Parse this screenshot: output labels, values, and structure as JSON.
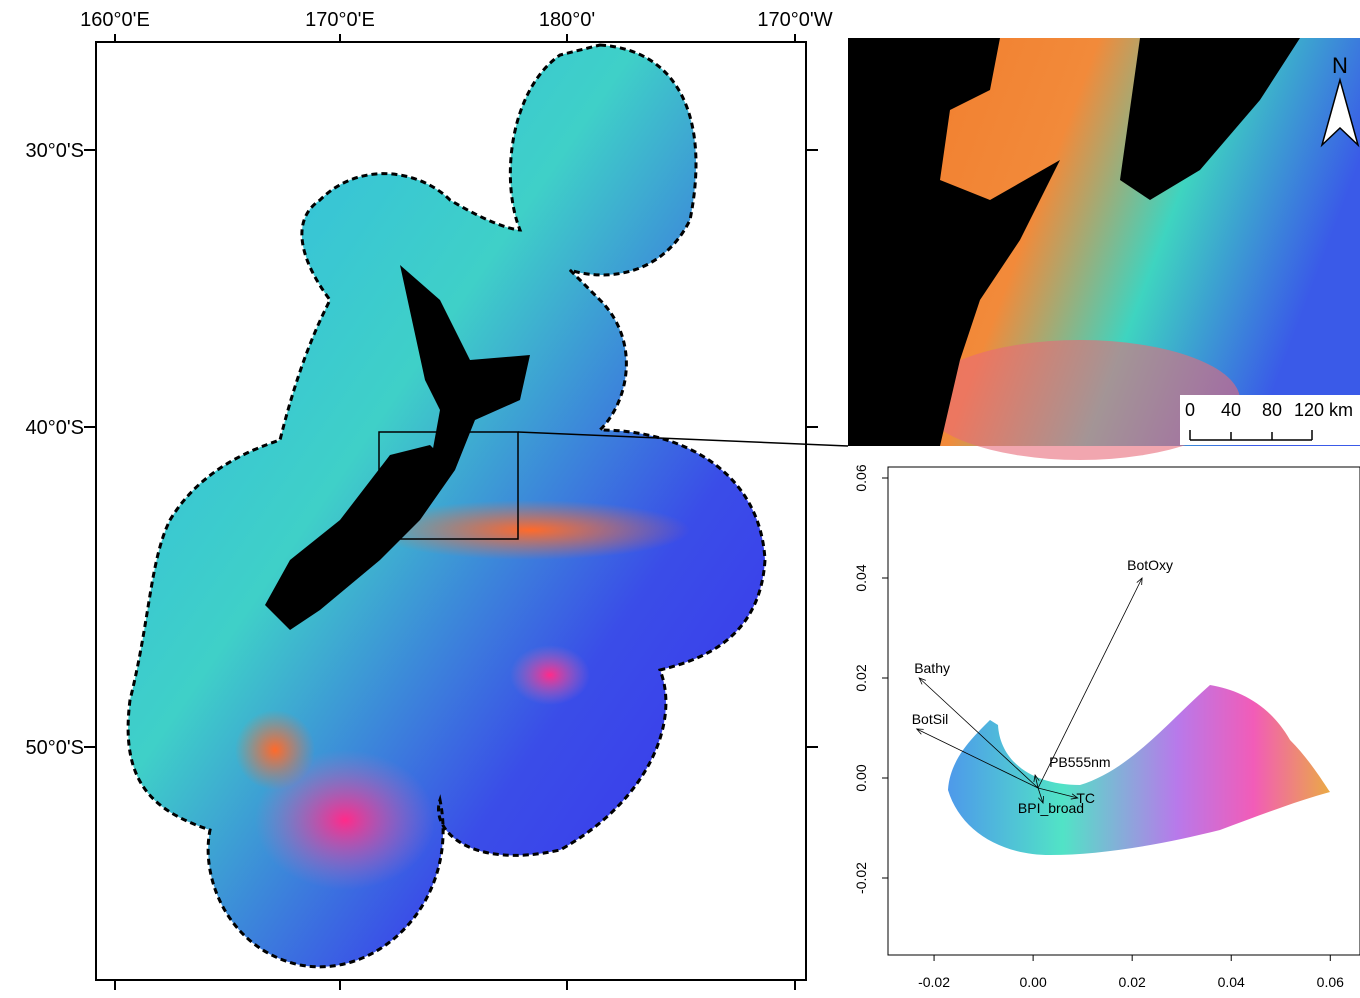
{
  "map": {
    "lon_labels": [
      "160°0'E",
      "170°0'E",
      "180°0'",
      "170°0'W"
    ],
    "lat_labels": [
      "30°0'S",
      "40°0'S",
      "50°0'S"
    ]
  },
  "inset": {
    "north_label": "N",
    "scale_labels": [
      "0",
      "40",
      "80",
      "120 km"
    ]
  },
  "biplot": {
    "xlim": [
      -0.0293,
      0.066
    ],
    "ylim": [
      -0.0354,
      0.0622
    ],
    "xticks": [
      {
        "value": -0.02,
        "label": "-0.02"
      },
      {
        "value": 0,
        "label": "0.00"
      },
      {
        "value": 0.02,
        "label": "0.02"
      },
      {
        "value": 0.04,
        "label": "0.04"
      },
      {
        "value": 0.06,
        "label": "0.06"
      }
    ],
    "yticks": [
      {
        "value": -0.02,
        "label": "-0.02"
      },
      {
        "value": 0,
        "label": "0.00"
      },
      {
        "value": 0.02,
        "label": "0.02"
      },
      {
        "value": 0.04,
        "label": "0.04"
      },
      {
        "value": 0.06,
        "label": "0.06"
      }
    ],
    "origin": [
      0.001,
      -0.002
    ],
    "vectors": [
      {
        "name": "BotOxy",
        "x": 0.022,
        "y": 0.04
      },
      {
        "name": "Bathy",
        "x": -0.023,
        "y": 0.02
      },
      {
        "name": "BotSil",
        "x": -0.0235,
        "y": 0.0098
      },
      {
        "name": "PB555nm",
        "x": 0.0004,
        "y": 0.0006
      },
      {
        "name": "BPI_broad",
        "x": 0.002,
        "y": -0.005
      },
      {
        "name": "TC",
        "x": 0.009,
        "y": -0.004
      }
    ]
  }
}
